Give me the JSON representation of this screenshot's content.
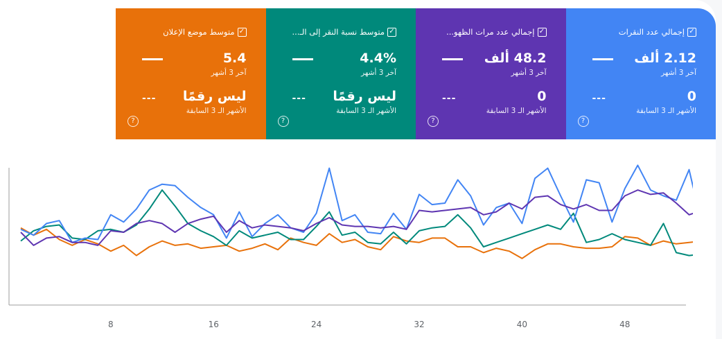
{
  "cards": [
    {
      "id": "clicks",
      "title": "إجمالي عدد النقرات",
      "value": "2.12 ألف",
      "value_sub": "آخر 3 أشهر",
      "prev_value": "0",
      "prev_sub": "الأشهر الـ 3 السابقة",
      "color": "#4285f4"
    },
    {
      "id": "impressions",
      "title": "إجمالي عدد مرات الظهو...",
      "value": "48.2 ألف",
      "value_sub": "آخر 3 أشهر",
      "prev_value": "0",
      "prev_sub": "الأشهر الـ 3 السابقة",
      "color": "#5e35b1"
    },
    {
      "id": "ctr",
      "title": "متوسط نسبة النقر إلى الـ...",
      "value": "4.4%",
      "value_sub": "آخر 3 أشهر",
      "prev_value": "ليس رقمًا",
      "prev_sub": "الأشهر الـ 3 السابقة",
      "color": "#00897b"
    },
    {
      "id": "position",
      "title": "متوسط موضع الإعلان",
      "value": "5.4",
      "value_sub": "آخر 3 أشهر",
      "prev_value": "ليس رقمًا",
      "prev_sub": "الأشهر الـ 3 السابقة",
      "color": "#e8710a"
    }
  ],
  "icons": {
    "check": "checkbox-checked-icon",
    "help": "help-circle-icon",
    "dash": "dash-icon"
  },
  "chart_data": {
    "type": "line",
    "x_ticks": [
      "8",
      "16",
      "24",
      "32",
      "40",
      "48"
    ],
    "xlim": [
      0,
      52
    ],
    "ylim": [
      0,
      10
    ],
    "grid": false,
    "legend": "none",
    "series": [
      {
        "color": "#4285f4",
        "values": [
          5.2,
          4.8,
          5.6,
          5.8,
          4.3,
          4.6,
          4.5,
          6.2,
          5.7,
          6.6,
          7.9,
          8.3,
          8.2,
          7.4,
          6.7,
          6.2,
          4.6,
          6.4,
          4.7,
          5.6,
          6.2,
          5.3,
          5.0,
          6.3,
          9.4,
          5.8,
          6.2,
          5.0,
          4.9,
          6.3,
          5.2,
          7.6,
          6.9,
          7.0,
          8.6,
          7.5,
          5.5,
          6.7,
          7.0,
          5.6,
          8.7,
          9.4,
          7.5,
          5.7,
          8.6,
          8.4,
          5.7,
          8.0,
          9.6,
          7.9,
          7.5,
          7.2,
          9.3,
          5.5
        ]
      },
      {
        "color": "#5e35b1",
        "values": [
          5.0,
          4.1,
          4.6,
          4.7,
          4.3,
          4.3,
          4.1,
          5.1,
          5.0,
          5.6,
          5.8,
          5.6,
          5.0,
          5.6,
          5.9,
          6.1,
          5.0,
          5.8,
          5.3,
          5.5,
          5.4,
          5.3,
          5.1,
          5.6,
          6.0,
          5.5,
          5.4,
          5.4,
          5.3,
          5.4,
          5.2,
          6.5,
          6.4,
          6.5,
          6.6,
          6.7,
          6.2,
          6.4,
          7.0,
          6.6,
          7.4,
          7.5,
          6.9,
          6.6,
          6.9,
          6.5,
          6.5,
          7.5,
          7.9,
          7.6,
          7.7,
          7.0,
          6.2,
          6.5
        ]
      },
      {
        "color": "#00897b",
        "values": [
          4.4,
          5.1,
          5.4,
          5.5,
          4.6,
          4.5,
          5.1,
          5.2,
          5.0,
          5.5,
          6.6,
          7.9,
          6.8,
          5.6,
          5.1,
          4.7,
          4.1,
          5.1,
          4.6,
          4.8,
          5.0,
          4.5,
          4.5,
          5.4,
          6.4,
          4.8,
          5.0,
          4.3,
          4.2,
          5.0,
          4.2,
          5.1,
          5.3,
          5.4,
          6.2,
          5.3,
          4.0,
          4.3,
          4.6,
          4.9,
          5.2,
          5.5,
          5.2,
          6.3,
          4.3,
          4.5,
          4.9,
          4.5,
          4.3,
          4.1,
          5.6,
          3.6,
          3.4,
          3.5
        ]
      },
      {
        "color": "#e8710a",
        "values": [
          5.3,
          4.8,
          5.2,
          4.5,
          4.1,
          4.5,
          4.2,
          3.7,
          4.1,
          3.4,
          4.0,
          4.4,
          4.1,
          4.2,
          3.9,
          4.0,
          4.1,
          3.7,
          3.9,
          4.2,
          3.8,
          4.6,
          4.3,
          4.1,
          4.9,
          4.3,
          4.5,
          4.0,
          3.8,
          4.7,
          4.4,
          4.3,
          4.6,
          4.6,
          4.0,
          4.0,
          3.6,
          3.9,
          3.7,
          3.2,
          3.8,
          4.2,
          4.2,
          4.0,
          3.9,
          3.9,
          4.0,
          4.7,
          4.6,
          4.1,
          4.4,
          4.2,
          4.3,
          4.4
        ]
      }
    ]
  }
}
